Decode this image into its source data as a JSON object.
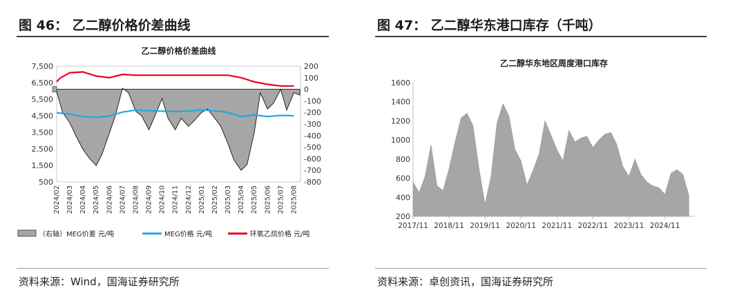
{
  "left": {
    "fig_title": "图 46： 乙二醇价格价差曲线",
    "source": "资料来源：Wind，国海证券研究所"
  },
  "right": {
    "fig_title": "图 47： 乙二醇华东港口库存（千吨）",
    "source": "资料来源：卓创资讯，国海证券研究所"
  },
  "chart_data": [
    {
      "type": "area",
      "title": "乙二醇价格价差曲线",
      "x_tick_labels": [
        "2024/02",
        "2024/03",
        "2024/04",
        "2024/05",
        "2024/06",
        "2024/07",
        "2024/08",
        "2024/09",
        "2024/10",
        "2024/11",
        "2024/12",
        "2025/01",
        "2025/02",
        "2025/03",
        "2025/04",
        "2025/05",
        "2025/06",
        "2025/07",
        "2025/08"
      ],
      "ylim": [
        500,
        7500
      ],
      "y_ticks": [
        "500",
        "1,500",
        "2,500",
        "3,500",
        "4,500",
        "5,500",
        "6,500",
        "7,500"
      ],
      "y2lim": [
        -800,
        200
      ],
      "y2_ticks": [
        "200",
        "100",
        "0",
        "-100",
        "-200",
        "-300",
        "-400",
        "-500",
        "-600",
        "-700",
        "-800"
      ],
      "legend_position": "bottom",
      "series": [
        {
          "name": "（右轴）MEG价差 元/吨",
          "axis": "right",
          "style": "area",
          "color": "#a6a6a6",
          "x": [
            "2024/02",
            "2024/02",
            "2024/03",
            "2024/03",
            "2024/04",
            "2024/04",
            "2024/05",
            "2024/05",
            "2024/06",
            "2024/06",
            "2024/07",
            "2024/07",
            "2024/08",
            "2024/08",
            "2024/09",
            "2024/09",
            "2024/10",
            "2024/10",
            "2024/11",
            "2024/11",
            "2024/12",
            "2024/12",
            "2025/01",
            "2025/01",
            "2025/02",
            "2025/02",
            "2025/03",
            "2025/03",
            "2025/04",
            "2025/04",
            "2025/05",
            "2025/05",
            "2025/06",
            "2025/06",
            "2025/07",
            "2025/07",
            "2025/08",
            "2025/08"
          ],
          "values": [
            -20,
            -200,
            -290,
            -400,
            -520,
            -590,
            -660,
            -560,
            -380,
            -230,
            10,
            -30,
            -190,
            -230,
            -350,
            -230,
            -80,
            -250,
            -350,
            -250,
            -320,
            -270,
            -200,
            -170,
            -250,
            -320,
            -470,
            -610,
            -700,
            -650,
            -370,
            -30,
            -170,
            -120,
            0,
            -180,
            -30,
            -50
          ]
        },
        {
          "name": "MEG价格 元/吨",
          "axis": "left",
          "style": "line",
          "color": "#1fa8e0",
          "x": [
            "2024/02",
            "2024/03",
            "2024/04",
            "2024/05",
            "2024/06",
            "2024/07",
            "2024/08",
            "2024/09",
            "2024/10",
            "2024/11",
            "2024/12",
            "2025/01",
            "2025/02",
            "2025/03",
            "2025/04",
            "2025/05",
            "2025/06",
            "2025/07",
            "2025/08"
          ],
          "values": [
            4680,
            4600,
            4450,
            4400,
            4480,
            4720,
            4840,
            4800,
            4780,
            4750,
            4780,
            4850,
            4800,
            4700,
            4450,
            4550,
            4450,
            4520,
            4500
          ]
        },
        {
          "name": "环氧乙烷价格 元/吨",
          "axis": "left",
          "style": "line",
          "color": "#e8001c",
          "x": [
            "2024/02",
            "2024/02",
            "2024/03",
            "2024/04",
            "2024/05",
            "2024/06",
            "2024/07",
            "2024/08",
            "2024/09",
            "2024/10",
            "2024/11",
            "2024/12",
            "2025/01",
            "2025/02",
            "2025/03",
            "2025/04",
            "2025/05",
            "2025/06",
            "2025/07",
            "2025/08"
          ],
          "values": [
            6550,
            6800,
            7100,
            7150,
            6900,
            6800,
            7000,
            6950,
            6950,
            6950,
            6950,
            6950,
            6950,
            6950,
            6950,
            6800,
            6550,
            6400,
            6300,
            6300
          ]
        }
      ]
    },
    {
      "type": "area",
      "title": "乙二醇华东地区周度港口库存",
      "x_tick_labels": [
        "2017/11",
        "2018/11",
        "2019/11",
        "2020/11",
        "2021/11",
        "2022/11",
        "2023/11",
        "2024/11"
      ],
      "ylim": [
        200,
        1600
      ],
      "y_ticks": [
        "200",
        "400",
        "600",
        "800",
        "1000",
        "1200",
        "1400",
        "1600"
      ],
      "series": [
        {
          "name": "",
          "color": "#a6a6a6",
          "x": [
            "2017/11",
            "2018/01",
            "2018/03",
            "2018/05",
            "2018/07",
            "2018/09",
            "2018/11",
            "2019/01",
            "2019/03",
            "2019/05",
            "2019/07",
            "2019/09",
            "2019/11",
            "2020/01",
            "2020/03",
            "2020/05",
            "2020/07",
            "2020/09",
            "2020/11",
            "2021/01",
            "2021/03",
            "2021/05",
            "2021/07",
            "2021/09",
            "2021/11",
            "2022/01",
            "2022/03",
            "2022/05",
            "2022/07",
            "2022/09",
            "2022/11",
            "2023/01",
            "2023/03",
            "2023/05",
            "2023/07",
            "2023/09",
            "2023/11",
            "2024/01",
            "2024/03",
            "2024/05",
            "2024/07",
            "2024/09",
            "2024/11",
            "2025/01",
            "2025/03",
            "2025/05",
            "2025/07"
          ],
          "values": [
            560,
            450,
            620,
            950,
            520,
            470,
            700,
            980,
            1230,
            1280,
            1150,
            700,
            330,
            620,
            1180,
            1380,
            1250,
            900,
            780,
            530,
            680,
            850,
            1200,
            1050,
            900,
            780,
            1100,
            980,
            1020,
            1040,
            920,
            1000,
            1060,
            1080,
            950,
            720,
            620,
            800,
            640,
            560,
            520,
            500,
            430,
            650,
            690,
            640,
            420
          ]
        }
      ]
    }
  ]
}
